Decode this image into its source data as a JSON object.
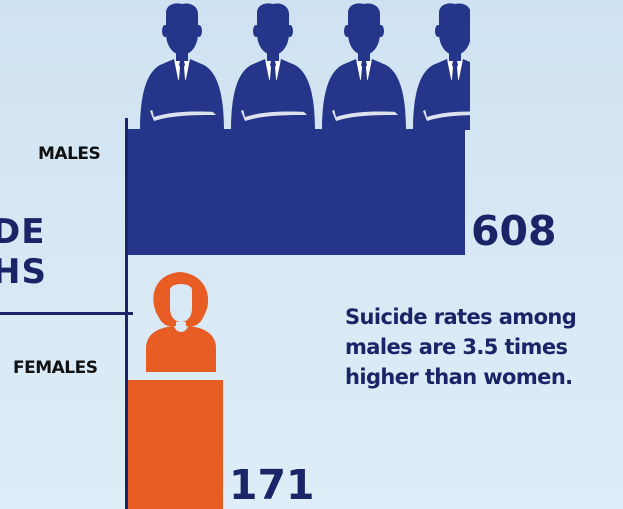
{
  "title": {
    "line1": "DE",
    "line2": "HS"
  },
  "colors": {
    "male": "#25368a",
    "female": "#e85d24",
    "text": "#1a2568"
  },
  "icons": {
    "male": "businessman-icon",
    "female": "woman-icon"
  },
  "annotation": {
    "line1": "Suicide rates among",
    "line2": "males are 3.5 times",
    "line3": "higher than women."
  },
  "chart_data": {
    "type": "bar",
    "orientation": "horizontal",
    "categories": [
      "MALES",
      "FEMALES"
    ],
    "values": [
      608,
      171
    ],
    "value_labels": [
      "608",
      "171"
    ],
    "colors": [
      "#25368a",
      "#e85d24"
    ]
  }
}
